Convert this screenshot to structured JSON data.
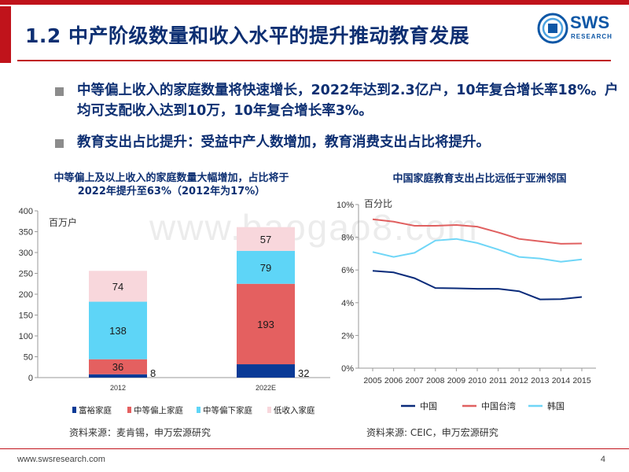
{
  "header": {
    "title": "1.2 中产阶级数量和收入水平的提升推动教育发展",
    "logo_text": "SWS",
    "logo_sub": "RESEARCH"
  },
  "bullets": [
    "中等偏上收入的家庭数量将快速增长，2022年达到2.3亿户，10年复合增长率18%。户均可支配收入达到10万，10年复合增长率3%。",
    "教育支出占比提升：受益中产人数增加，教育消费支出占比将提升。"
  ],
  "watermark": "www.baogao8.com",
  "footer": {
    "url": "www.swsresearch.com",
    "page": "4"
  },
  "chart_data": [
    {
      "type": "bar",
      "stacked": true,
      "title": "中等偏上及以上收入的家庭数量大幅增加，占比将于2022年提升至63%（2012年为17%）",
      "ylabel": "百万户",
      "ylim": [
        0,
        400
      ],
      "yticks": [
        "0",
        "50",
        "100",
        "150",
        "200",
        "250",
        "300",
        "350",
        "400"
      ],
      "categories": [
        "2012",
        "2022E"
      ],
      "series": [
        {
          "name": "富裕家庭",
          "color": "#0a3a96",
          "values": [
            8,
            32
          ]
        },
        {
          "name": "中等偏上家庭",
          "color": "#e46060",
          "values": [
            36,
            193
          ]
        },
        {
          "name": "中等偏下家庭",
          "color": "#5ed5f7",
          "values": [
            138,
            79
          ]
        },
        {
          "name": "低收入家庭",
          "color": "#f8d7dc",
          "values": [
            74,
            57
          ]
        }
      ],
      "source": "资料来源：麦肯锡，申万宏源研究"
    },
    {
      "type": "line",
      "title": "中国家庭教育支出占比远低于亚洲邻国",
      "ylabel": "百分比",
      "ylim": [
        0,
        10
      ],
      "yticks": [
        "0%",
        "2%",
        "4%",
        "6%",
        "8%",
        "10%"
      ],
      "x": [
        "2005",
        "2006",
        "2007",
        "2008",
        "2009",
        "2010",
        "2011",
        "2012",
        "2013",
        "2014",
        "2015"
      ],
      "series": [
        {
          "name": "中国",
          "color": "#0a2b7a",
          "values": [
            5.95,
            5.85,
            5.5,
            4.9,
            4.88,
            4.85,
            4.85,
            4.7,
            4.2,
            4.22,
            4.35
          ]
        },
        {
          "name": "中国台湾",
          "color": "#e06060",
          "values": [
            9.1,
            8.95,
            8.7,
            8.7,
            8.75,
            8.65,
            8.3,
            7.9,
            7.75,
            7.6,
            7.62
          ]
        },
        {
          "name": "韩国",
          "color": "#6fd6f7",
          "values": [
            7.1,
            6.8,
            7.05,
            7.8,
            7.9,
            7.65,
            7.25,
            6.8,
            6.7,
            6.5,
            6.65
          ]
        }
      ],
      "source": "资料来源: CEIC，申万宏源研究"
    }
  ]
}
